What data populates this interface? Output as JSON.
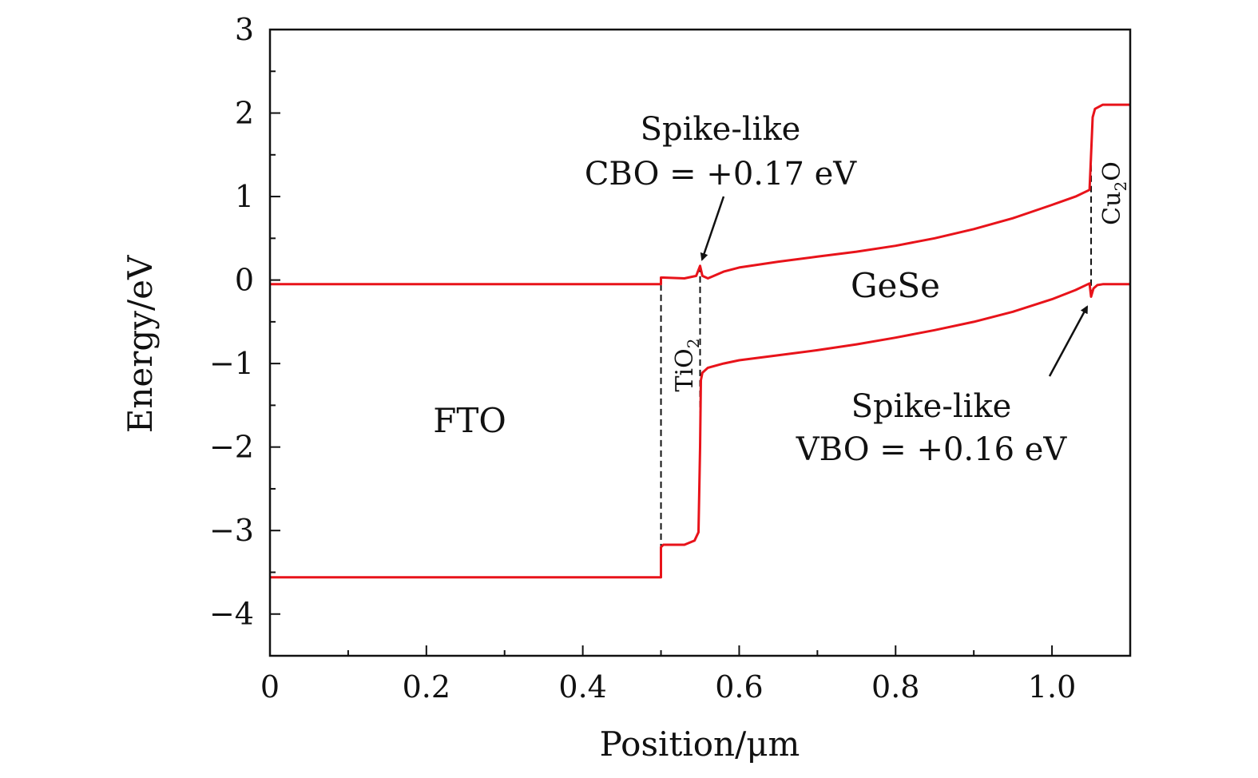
{
  "chart_data": {
    "type": "line",
    "xlabel": "Position/μm",
    "ylabel": "Energy/eV",
    "xlim": [
      0,
      1.1
    ],
    "ylim": [
      -4.5,
      3
    ],
    "x_ticks": [
      0,
      0.2,
      0.4,
      0.6,
      0.8,
      1.0
    ],
    "x_tick_labels": [
      "0",
      "0.2",
      "0.4",
      "0.6",
      "0.8",
      "1.0"
    ],
    "y_ticks": [
      -4,
      -3,
      -2,
      -1,
      0,
      1,
      2,
      3
    ],
    "y_tick_labels": [
      "−4",
      "−3",
      "−2",
      "−1",
      "0",
      "1",
      "2",
      "3"
    ],
    "grid": false,
    "line_color": "#e8131a",
    "series": [
      {
        "x": [
          0,
          0.5,
          0.5,
          0.503,
          0.53,
          0.545,
          0.55,
          0.553,
          0.56,
          0.58,
          0.6,
          0.65,
          0.7,
          0.75,
          0.8,
          0.85,
          0.9,
          0.95,
          1.0,
          1.03,
          1.048,
          1.05,
          1.052,
          1.055,
          1.065,
          1.08,
          1.1
        ],
        "y": [
          -0.05,
          -0.05,
          0.03,
          0.03,
          0.02,
          0.05,
          0.17,
          0.05,
          0.02,
          0.1,
          0.15,
          0.22,
          0.28,
          0.34,
          0.41,
          0.5,
          0.61,
          0.74,
          0.9,
          1.0,
          1.08,
          1.5,
          1.95,
          2.05,
          2.1,
          2.1,
          2.1
        ]
      },
      {
        "x": [
          0,
          0.5,
          0.5,
          0.503,
          0.53,
          0.543,
          0.548,
          0.55,
          0.551,
          0.553,
          0.56,
          0.58,
          0.6,
          0.65,
          0.7,
          0.75,
          0.8,
          0.85,
          0.9,
          0.95,
          1.0,
          1.03,
          1.048,
          1.05,
          1.053,
          1.058,
          1.065,
          1.08,
          1.1
        ],
        "y": [
          -3.56,
          -3.56,
          -3.2,
          -3.17,
          -3.17,
          -3.12,
          -3.02,
          -2.0,
          -1.2,
          -1.11,
          -1.05,
          -1.0,
          -0.96,
          -0.9,
          -0.84,
          -0.77,
          -0.69,
          -0.6,
          -0.5,
          -0.38,
          -0.23,
          -0.12,
          -0.04,
          -0.2,
          -0.1,
          -0.06,
          -0.05,
          -0.05,
          -0.05
        ]
      }
    ],
    "interfaces": [
      0.5,
      0.55,
      1.05
    ],
    "regions": {
      "fto": "FTO",
      "tio2_base": "TiO",
      "tio2_sub": "2",
      "gese": "GeSe",
      "cu2o_base": "Cu",
      "cu2o_sub": "2",
      "cu2o_end": "O"
    },
    "annotations": {
      "cbo_line1": "Spike-like",
      "cbo_line2": "CBO = +0.17 eV",
      "vbo_line1": "Spike-like",
      "vbo_line2": "VBO = +0.16 eV"
    }
  }
}
